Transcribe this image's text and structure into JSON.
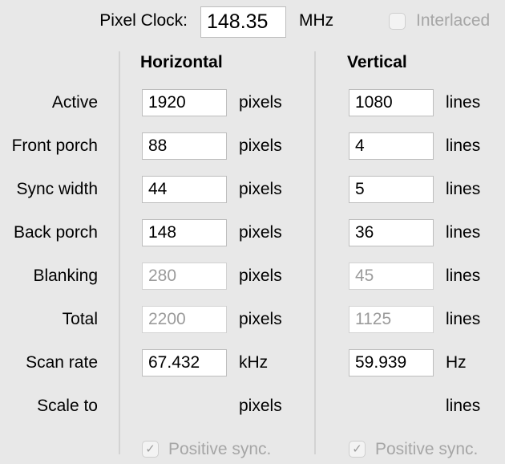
{
  "pixel_clock": {
    "label": "Pixel Clock:",
    "value": "148.35",
    "unit": "MHz"
  },
  "interlaced": {
    "label": "Interlaced",
    "checked": false,
    "enabled": false
  },
  "headers": {
    "horizontal": "Horizontal",
    "vertical": "Vertical"
  },
  "rows": [
    {
      "label": "Active",
      "h": "1920",
      "h_unit": "pixels",
      "v": "1080",
      "v_unit": "lines",
      "editable": true
    },
    {
      "label": "Front porch",
      "h": "88",
      "h_unit": "pixels",
      "v": "4",
      "v_unit": "lines",
      "editable": true
    },
    {
      "label": "Sync width",
      "h": "44",
      "h_unit": "pixels",
      "v": "5",
      "v_unit": "lines",
      "editable": true
    },
    {
      "label": "Back porch",
      "h": "148",
      "h_unit": "pixels",
      "v": "36",
      "v_unit": "lines",
      "editable": true
    },
    {
      "label": "Blanking",
      "h": "280",
      "h_unit": "pixels",
      "v": "45",
      "v_unit": "lines",
      "editable": false
    },
    {
      "label": "Total",
      "h": "2200",
      "h_unit": "pixels",
      "v": "1125",
      "v_unit": "lines",
      "editable": false
    },
    {
      "label": "Scan rate",
      "h": "67.432",
      "h_unit": "kHz",
      "v": "59.939",
      "v_unit": "Hz",
      "editable": true
    },
    {
      "label": "Scale to",
      "h_unit": "pixels",
      "v_unit": "lines"
    }
  ],
  "positive_sync": {
    "h_label": "Positive sync.",
    "v_label": "Positive sync.",
    "h_checked": true,
    "v_checked": true,
    "enabled": false
  }
}
